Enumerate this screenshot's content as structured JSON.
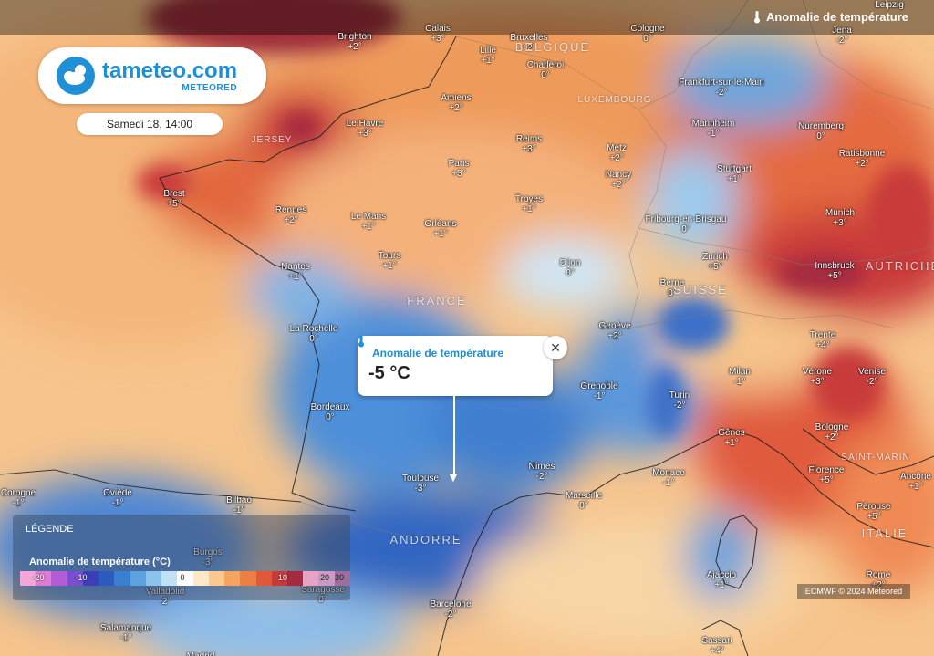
{
  "layer": {
    "title": "Anomalie de température"
  },
  "brand": {
    "name": "tameteo.com",
    "sub": "METEORED"
  },
  "date": "Samedi 18, 14:00",
  "popup": {
    "title": "Anomalie de température",
    "value": "-5 °C",
    "close": "×"
  },
  "legend": {
    "header": "LÉGENDE",
    "title": "Anomalie de température (°C)",
    "ticks": [
      "-20",
      "-10",
      "0",
      "10",
      "20",
      "30"
    ],
    "colors": [
      "#f2a7d6",
      "#e07bd4",
      "#b45cd6",
      "#7a4fcf",
      "#3d3fb8",
      "#2c5bbf",
      "#3b7fd1",
      "#5ea1e0",
      "#8cc3ec",
      "#c3e1f5",
      "#ffffff",
      "#fde8c8",
      "#fbc98d",
      "#f6a35f",
      "#ee7f43",
      "#e0573a",
      "#c83a3a",
      "#a42a3f",
      "#e6a3c5",
      "#c99bc4",
      "#9a6f9b"
    ]
  },
  "credit": "ECMWF © 2024 Meteored",
  "countries": [
    {
      "name": "BELGIQUE"
    },
    {
      "name": "LUXEMBOURG"
    },
    {
      "name": "FRANCE"
    },
    {
      "name": "SUISSE"
    },
    {
      "name": "AUTRICHE"
    },
    {
      "name": "ANDORRE"
    },
    {
      "name": "JERSEY"
    },
    {
      "name": "SAINT-MARIN"
    },
    {
      "name": "ITALIE"
    }
  ],
  "cities": [
    {
      "name": "Brighton",
      "v": "+2°"
    },
    {
      "name": "Calais",
      "v": "+3°"
    },
    {
      "name": "Bruxelles",
      "v": "+2°"
    },
    {
      "name": "Lille",
      "v": "+1°"
    },
    {
      "name": "Charleroi",
      "v": "0°"
    },
    {
      "name": "Cologne",
      "v": "0°"
    },
    {
      "name": "Leipzig",
      "v": ""
    },
    {
      "name": "Jena",
      "v": "-2°"
    },
    {
      "name": "Amiens",
      "v": "+2°"
    },
    {
      "name": "Le Havre",
      "v": "+3°"
    },
    {
      "name": "Frankfurt-sur-le-Main",
      "v": "-2°"
    },
    {
      "name": "Mannheim",
      "v": "-1°"
    },
    {
      "name": "Nuremberg",
      "v": "0°"
    },
    {
      "name": "Reims",
      "v": "+3°"
    },
    {
      "name": "Metz",
      "v": "+2°"
    },
    {
      "name": "Ratisbonne",
      "v": "+2°"
    },
    {
      "name": "Paris",
      "v": "+3°"
    },
    {
      "name": "Nancy",
      "v": "+2°"
    },
    {
      "name": "Stuttgart",
      "v": "+1°"
    },
    {
      "name": "Brest",
      "v": "+5°"
    },
    {
      "name": "Troyes",
      "v": "+1°"
    },
    {
      "name": "Rennes",
      "v": "+2°"
    },
    {
      "name": "Le Mans",
      "v": "+1°"
    },
    {
      "name": "Orléans",
      "v": "+1°"
    },
    {
      "name": "Fribourg-en-Brisgau",
      "v": "0°"
    },
    {
      "name": "Munich",
      "v": "+3°"
    },
    {
      "name": "Tours",
      "v": "+1°"
    },
    {
      "name": "Zurich",
      "v": "+5°"
    },
    {
      "name": "Innsbruck",
      "v": "+5°"
    },
    {
      "name": "Nantes",
      "v": "+1°"
    },
    {
      "name": "Dijon",
      "v": "0°"
    },
    {
      "name": "Berne",
      "v": "0°"
    },
    {
      "name": "La Rochelle",
      "v": "0°"
    },
    {
      "name": "Genève",
      "v": "+2°"
    },
    {
      "name": "Trente",
      "v": "+4°"
    },
    {
      "name": "Milan",
      "v": "-1°"
    },
    {
      "name": "Vérone",
      "v": "+3°"
    },
    {
      "name": "Venise",
      "v": "-2°"
    },
    {
      "name": "Grenoble",
      "v": "-1°"
    },
    {
      "name": "Turin",
      "v": "-2°"
    },
    {
      "name": "Bordeaux",
      "v": "0°"
    },
    {
      "name": "Bologne",
      "v": "+2°"
    },
    {
      "name": "Gênes",
      "v": "+1°"
    },
    {
      "name": "Nîmes",
      "v": "-2°"
    },
    {
      "name": "Monaco",
      "v": "-1°"
    },
    {
      "name": "Florence",
      "v": "+5°"
    },
    {
      "name": "Ancône",
      "v": "+1°"
    },
    {
      "name": "Toulouse",
      "v": "-3°"
    },
    {
      "name": "Marseille",
      "v": "0°"
    },
    {
      "name": "Pérouse",
      "v": "+5°"
    },
    {
      "name": "Corogne",
      "v": "-1°"
    },
    {
      "name": "Oviède",
      "v": "-1°"
    },
    {
      "name": "Bilbao",
      "v": "-1°"
    },
    {
      "name": "Burgos",
      "v": "-3°"
    },
    {
      "name": "Ajaccio",
      "v": "+1°"
    },
    {
      "name": "Rome",
      "v": "+2°"
    },
    {
      "name": "Valladolid",
      "v": "-2°"
    },
    {
      "name": "Saragosse",
      "v": "0°"
    },
    {
      "name": "Barcelone",
      "v": "-2°"
    },
    {
      "name": "Salamanque",
      "v": "-1°"
    },
    {
      "name": "Sassari",
      "v": "+4°"
    },
    {
      "name": "Madrid",
      "v": ""
    }
  ]
}
